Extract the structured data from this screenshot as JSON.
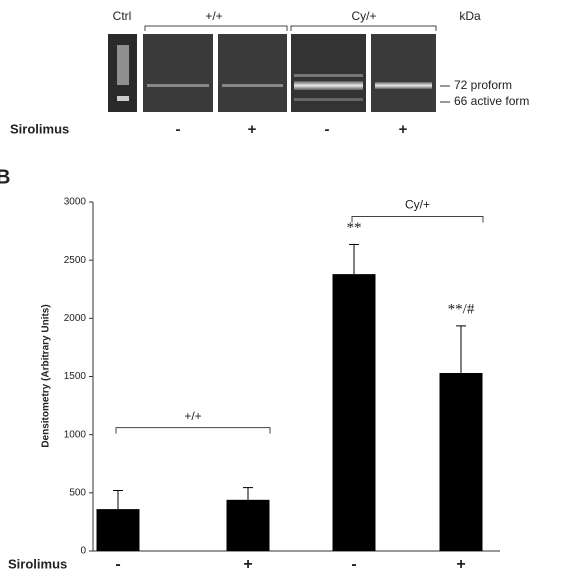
{
  "gel": {
    "lane_labels": [
      "Ctrl",
      "+/+",
      "Cy/+"
    ],
    "unit": "kDa",
    "band_labels": [
      "72 proform",
      "66 active form"
    ],
    "treatment_label": "Sirolimus",
    "treatments": [
      "-",
      "+",
      "-",
      "+"
    ]
  },
  "chart_data": {
    "type": "bar",
    "panel_label": "B",
    "ylabel": "Densitometry (Arbitrary Units)",
    "categories": [
      "-",
      "+",
      "-",
      "+"
    ],
    "x_row_label": "Sirolimus",
    "values": [
      360,
      440,
      2380,
      1530
    ],
    "errors": [
      160,
      105,
      255,
      405
    ],
    "annotations": [
      null,
      null,
      "**",
      "**/#"
    ],
    "group_labels": [
      "+/+",
      "Cy/+"
    ],
    "color": "#000000",
    "ylim": [
      0,
      3000
    ],
    "yticks": [
      0,
      500,
      1000,
      1500,
      2000,
      2500,
      3000
    ]
  }
}
